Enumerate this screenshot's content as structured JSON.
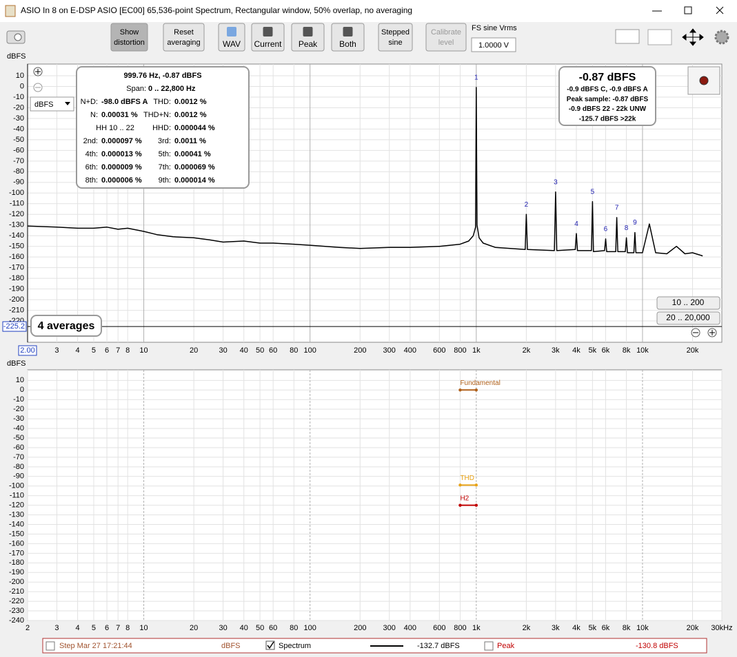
{
  "window": {
    "title": "ASIO In 8 on E-DSP ASIO [EC00] 65,536-point Spectrum, Rectangular window, 50% overlap, no averaging"
  },
  "toolbar": {
    "buttons": [
      {
        "lines": [
          "Show",
          "distortion"
        ]
      },
      {
        "lines": [
          "Reset",
          "averaging"
        ]
      },
      {
        "lines": [
          "WAV"
        ]
      },
      {
        "lines": [
          "Current"
        ]
      },
      {
        "lines": [
          "Peak"
        ]
      },
      {
        "lines": [
          "Both"
        ]
      },
      {
        "lines": [
          "Stepped",
          "sine"
        ]
      },
      {
        "lines": [
          "Calibrate",
          "level"
        ]
      }
    ],
    "fs_label": "FS sine Vrms",
    "fs_value": "1.0000 V"
  },
  "info": {
    "header": "999.76 Hz, -0.87 dBFS",
    "span_label": "Span:",
    "span": "0 .. 22,800 Hz",
    "rows": [
      [
        [
          "N+D:",
          "-98.0 dBFS A"
        ],
        [
          "THD:",
          "0.0012 %"
        ]
      ],
      [
        [
          "N:",
          "0.00031 %"
        ],
        [
          "THD+N:",
          "0.0012 %"
        ]
      ],
      [
        [
          "HH 10 .. 22"
        ],
        [
          "HHD:",
          "0.000044 %"
        ]
      ],
      [
        [
          "2nd:",
          "0.000097 %"
        ],
        [
          "3rd:",
          "0.0011 %"
        ]
      ],
      [
        [
          "4th:",
          "0.000013 %"
        ],
        [
          "5th:",
          "0.00041 %"
        ]
      ],
      [
        [
          "6th:",
          "0.000009 %"
        ],
        [
          "7th:",
          "0.000069 %"
        ]
      ],
      [
        [
          "8th:",
          "0.000006 %"
        ],
        [
          "9th:",
          "0.000014 %"
        ]
      ]
    ]
  },
  "peak_panel": {
    "value": "-0.87 dBFS",
    "lines": [
      "-0.9 dBFS C, -0.9 dBFS A",
      "Peak sample: -0.87 dBFS",
      "-0.9 dBFS 22 - 22k UNW",
      "-125.7 dBFS >22k"
    ]
  },
  "unit_select": "dBFS",
  "range_buttons": [
    "10 .. 200",
    "20 .. 20,000"
  ],
  "averages": "4 averages",
  "cursor": {
    "y": -225.2,
    "x": {
      "value": 2,
      "label": "2.00"
    }
  },
  "chart_data": [
    {
      "type": "line",
      "y_label": "dBFS",
      "log_x": true,
      "grid": true,
      "xlim": [
        2,
        30000
      ],
      "ylim": [
        -240,
        21
      ],
      "xticks": [
        3,
        4,
        5,
        6,
        7,
        8,
        10,
        20,
        30,
        40,
        50,
        60,
        80,
        100,
        200,
        300,
        400,
        600,
        800,
        {
          "value": 1000,
          "label": "1k"
        },
        {
          "value": 2000,
          "label": "2k"
        },
        {
          "value": 3000,
          "label": "3k"
        },
        {
          "value": 4000,
          "label": "4k"
        },
        {
          "value": 5000,
          "label": "5k"
        },
        {
          "value": 6000,
          "label": "6k"
        },
        {
          "value": 8000,
          "label": "8k"
        },
        {
          "value": 10000,
          "label": "10k"
        },
        {
          "value": 20000,
          "label": "20k"
        }
      ],
      "yticks": [
        10,
        0,
        -10,
        -20,
        -30,
        -40,
        -50,
        -60,
        -70,
        -80,
        -90,
        -100,
        -110,
        -120,
        -130,
        -140,
        -150,
        -160,
        -170,
        -180,
        -190,
        -200,
        -210,
        -220
      ],
      "x": [
        2,
        3,
        4,
        5,
        6,
        7,
        8,
        10,
        12,
        15,
        20,
        25,
        30,
        40,
        50,
        60,
        80,
        100,
        150,
        200,
        300,
        400,
        600,
        800,
        900,
        960,
        990,
        1000,
        1010,
        1040,
        1100,
        1300,
        1600,
        1970,
        2000,
        2030,
        2950,
        3000,
        3050,
        3940,
        4000,
        4060,
        4930,
        5000,
        5070,
        5910,
        6000,
        6090,
        6900,
        7000,
        7100,
        7880,
        8000,
        8120,
        8870,
        9000,
        9130,
        10000,
        11000,
        12000,
        14000,
        16000,
        18000,
        20000,
        22000,
        23000
      ],
      "series": [
        {
          "name": "Spectrum",
          "color": "#000000",
          "values": [
            -131,
            -132,
            -133,
            -133,
            -132,
            -134,
            -133,
            -136,
            -139,
            -141,
            -142,
            -144,
            -146,
            -145,
            -147,
            -147,
            -148,
            -149,
            -151,
            -152,
            -151,
            -151,
            -150,
            -148,
            -145,
            -140,
            -132,
            -0.87,
            -130,
            -142,
            -147,
            -151,
            -152,
            -153,
            -120,
            -153,
            -154,
            -99,
            -154,
            -153,
            -138,
            -154,
            -154,
            -108,
            -155,
            -154,
            -143,
            -155,
            -155,
            -123,
            -155,
            -155,
            -142,
            -156,
            -156,
            -137,
            -156,
            -156,
            -129,
            -156,
            -157,
            -150,
            -157,
            -156,
            -158,
            -159
          ]
        }
      ],
      "annotations": [
        {
          "label": "1",
          "x": 1000,
          "y": -0.87
        },
        {
          "label": "2",
          "x": 2000,
          "y": -120
        },
        {
          "label": "3",
          "x": 3000,
          "y": -99
        },
        {
          "label": "4",
          "x": 4000,
          "y": -138
        },
        {
          "label": "5",
          "x": 5000,
          "y": -108
        },
        {
          "label": "6",
          "x": 6000,
          "y": -143
        },
        {
          "label": "7",
          "x": 7000,
          "y": -123
        },
        {
          "label": "8",
          "x": 8000,
          "y": -142
        },
        {
          "label": "9",
          "x": 9000,
          "y": -137
        }
      ]
    },
    {
      "type": "line",
      "y_label": "dBFS",
      "log_x": true,
      "grid": true,
      "xlim": [
        2,
        30000
      ],
      "ylim": [
        -240,
        21
      ],
      "xticks": [
        2,
        3,
        4,
        5,
        6,
        7,
        8,
        10,
        20,
        30,
        40,
        50,
        60,
        80,
        100,
        200,
        300,
        400,
        600,
        800,
        {
          "value": 1000,
          "label": "1k"
        },
        {
          "value": 2000,
          "label": "2k"
        },
        {
          "value": 3000,
          "label": "3k"
        },
        {
          "value": 4000,
          "label": "4k"
        },
        {
          "value": 5000,
          "label": "5k"
        },
        {
          "value": 6000,
          "label": "6k"
        },
        {
          "value": 8000,
          "label": "8k"
        },
        {
          "value": 10000,
          "label": "10k"
        },
        {
          "value": 20000,
          "label": "20k"
        },
        {
          "value": 30000,
          "label": "30kHz"
        }
      ],
      "yticks": [
        10,
        0,
        -10,
        -20,
        -30,
        -40,
        -50,
        -60,
        -70,
        -80,
        -90,
        -100,
        -110,
        -120,
        -130,
        -140,
        -150,
        -160,
        -170,
        -180,
        -190,
        -200,
        -210,
        -220,
        -230,
        -240
      ],
      "x": [
        800,
        1000
      ],
      "series": [
        {
          "name": "Fundamental",
          "color": "#b0601a",
          "values": [
            0,
            0
          ]
        },
        {
          "name": "THD",
          "color": "#e8a317",
          "values": [
            -99,
            -99
          ]
        },
        {
          "name": "H2",
          "color": "#c00000",
          "values": [
            -120,
            -120
          ]
        }
      ]
    }
  ],
  "legend_bar": {
    "step": "Step Mar 27 17:21:44",
    "unit": "dBFS",
    "spectrum": "Spectrum",
    "spectrum_level": "-132.7 dBFS",
    "peak": "Peak",
    "peak_level": "-130.8 dBFS"
  }
}
